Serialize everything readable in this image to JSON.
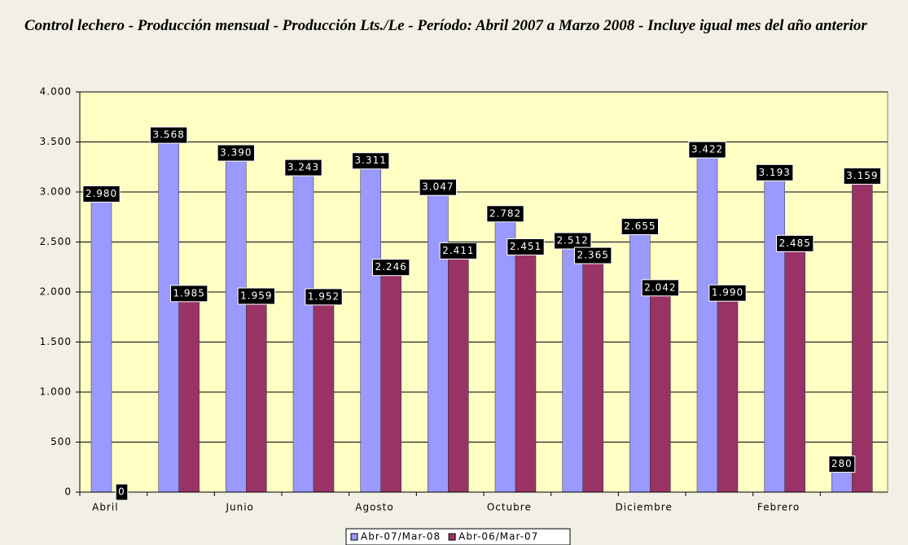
{
  "chart_data": {
    "type": "bar",
    "title": "Control lechero - Producción mensual - Producción Lts./Le - Período: Abril 2007 a Marzo 2008 - Incluye igual mes del año anterior",
    "categories": [
      "Abril",
      null,
      "Junio",
      null,
      "Agosto",
      null,
      "Octubre",
      null,
      "Diciembre",
      null,
      "Febrero",
      null
    ],
    "series": [
      {
        "name": "Abr-07/Mar-08",
        "color": "#9999ff",
        "values": [
          2980,
          3568,
          3390,
          3243,
          3311,
          3047,
          2782,
          2512,
          2655,
          3422,
          3193,
          280
        ],
        "value_labels": [
          "2.980",
          "3.568",
          "3.390",
          "3.243",
          "3.311",
          "3.047",
          "2.782",
          "2.512",
          "2.655",
          "3.422",
          "3.193",
          "280"
        ]
      },
      {
        "name": "Abr-06/Mar-07",
        "color": "#993366",
        "values": [
          0,
          1985,
          1959,
          1952,
          2246,
          2411,
          2451,
          2365,
          2042,
          1990,
          2485,
          3159
        ],
        "value_labels": [
          "0",
          "1.985",
          "1.959",
          "1.952",
          "2.246",
          "2.411",
          "2.451",
          "2.365",
          "2.042",
          "1.990",
          "2.485",
          "3.159"
        ]
      }
    ],
    "ylim": [
      0,
      4000
    ],
    "yticks": [
      0,
      500,
      {
        "value": 1000,
        "label": "1.000"
      },
      {
        "value": 1500,
        "label": "1.500"
      },
      {
        "value": 2000,
        "label": "2.000"
      },
      {
        "value": 2500,
        "label": "2.500"
      },
      {
        "value": 3000,
        "label": "3.000"
      },
      {
        "value": 3500,
        "label": "3.500"
      },
      {
        "value": 4000,
        "label": "4.000"
      }
    ],
    "grid": true,
    "legend": "bottom"
  }
}
